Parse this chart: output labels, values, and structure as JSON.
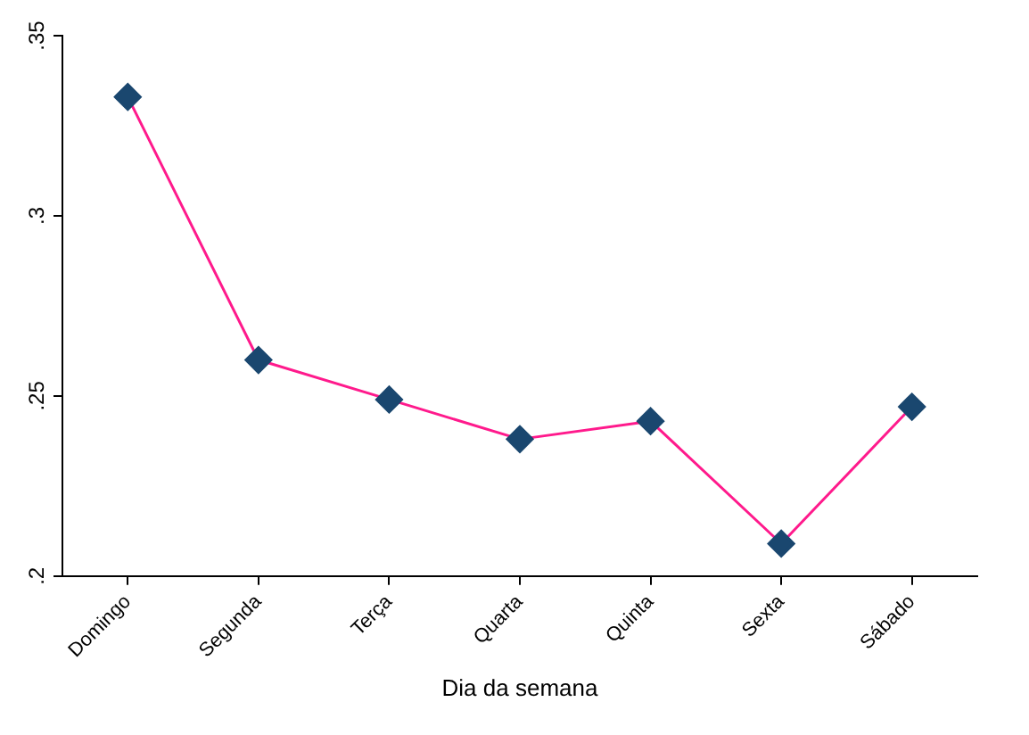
{
  "chart_data": {
    "type": "line",
    "xlabel": "Dia da semana",
    "categories": [
      "Domingo",
      "Segunda",
      "Terça",
      "Quarta",
      "Quinta",
      "Sexta",
      "Sábado"
    ],
    "series": [
      {
        "color": "#ff1a8c",
        "colors": [
          "#1a476f",
          "#1a476f",
          "#1a476f",
          "#1a476f",
          "#1a476f",
          "#1a476f",
          "#1a476f"
        ],
        "values": [
          0.333,
          0.26,
          0.249,
          0.238,
          0.243,
          0.209,
          0.247
        ]
      }
    ],
    "ylim": [
      0.2,
      0.35
    ],
    "yticks": [
      {
        "value": 0.2,
        "label": ".2"
      },
      {
        "value": 0.25,
        "label": ".25"
      },
      {
        "value": 0.3,
        "label": ".3"
      },
      {
        "value": 0.35,
        "label": ".35"
      }
    ],
    "grid": false,
    "legend": false,
    "marker": "diamond",
    "line_style": "solid"
  }
}
